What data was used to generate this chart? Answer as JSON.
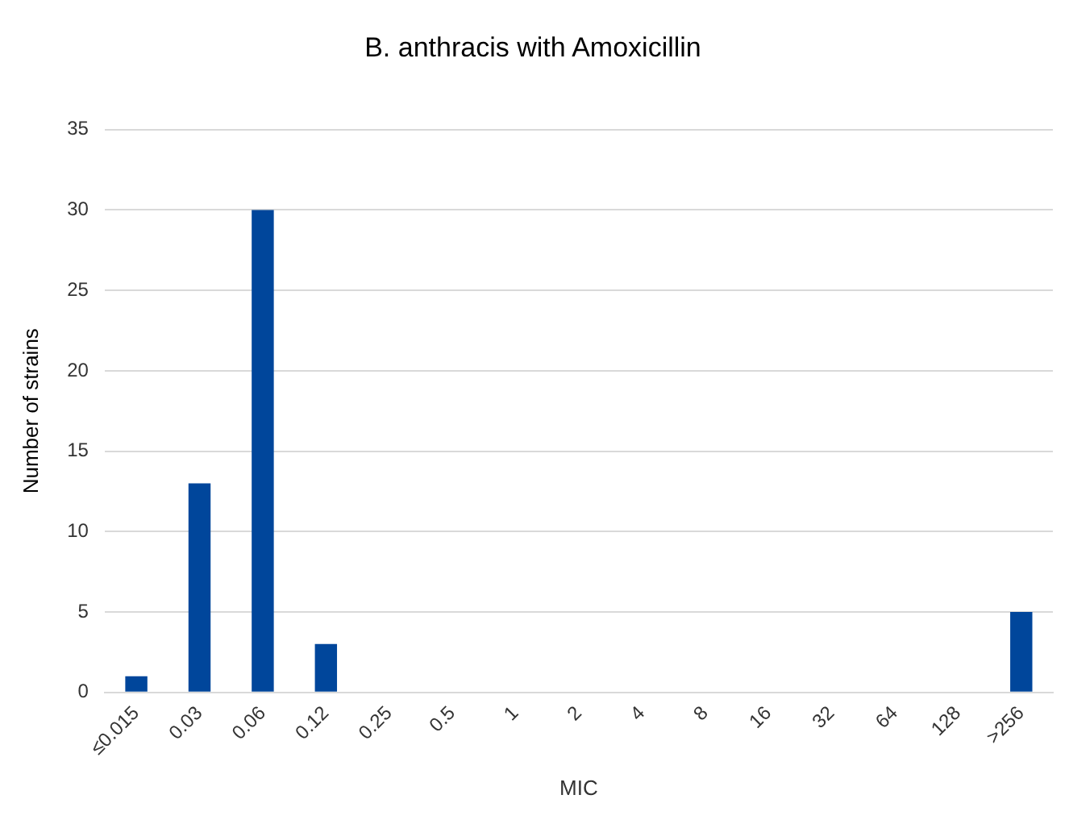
{
  "chart_data": {
    "type": "bar",
    "title": "B. anthracis with Amoxicillin",
    "xlabel": "MIC",
    "ylabel": "Number of strains",
    "categories": [
      "≤0.015",
      "0.03",
      "0.06",
      "0.12",
      "0.25",
      "0.5",
      "1",
      "2",
      "4",
      "8",
      "16",
      "32",
      "64",
      "128",
      ">256"
    ],
    "values": [
      1,
      13,
      30,
      3,
      0,
      0,
      0,
      0,
      0,
      0,
      0,
      0,
      0,
      0,
      5
    ],
    "color": "#00469b",
    "ylim": [
      0,
      35
    ],
    "yticks": [
      0,
      5,
      10,
      15,
      20,
      25,
      30,
      35
    ],
    "grid": "y",
    "legend": false
  }
}
